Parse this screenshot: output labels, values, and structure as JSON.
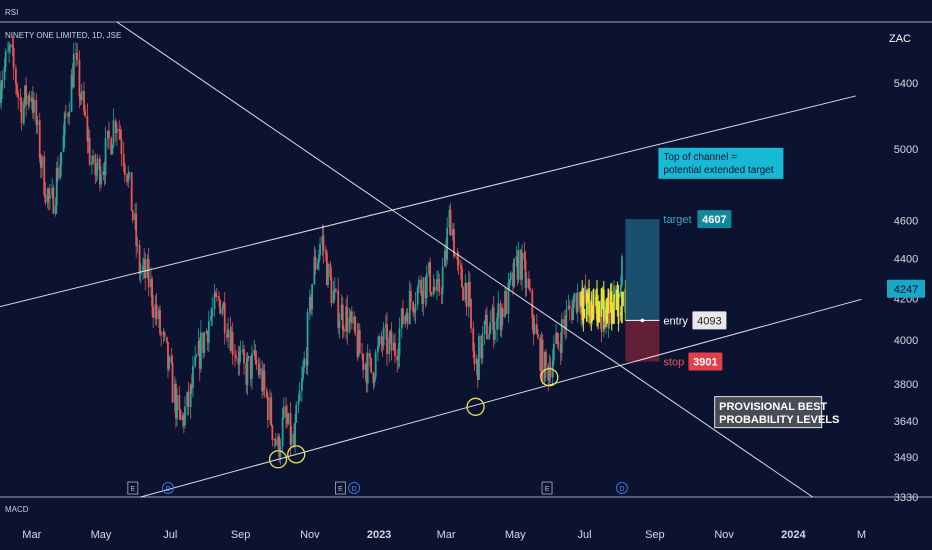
{
  "panes": {
    "top_label": "RSI",
    "bottom_label": "MACD"
  },
  "symbol": {
    "title": "NINETY ONE LIMITED, 1D, JSE",
    "currency": "ZAC"
  },
  "colors": {
    "bg": "#0c1331",
    "up": "#26a69a",
    "down": "#ef5350",
    "projection": "#e4e43a",
    "marker": "#e3e35a",
    "line": "#ffffff"
  },
  "chart_data": {
    "type": "candlestick",
    "y_scale": "log",
    "ylim": [
      3330,
      5800
    ],
    "y_ticks": [
      "5400",
      "5000",
      "4600",
      "4400",
      "4200",
      "4000",
      "3800",
      "3640",
      "3490",
      "3330"
    ],
    "x_ticks": [
      "Mar",
      "May",
      "Jul",
      "Sep",
      "Nov",
      "2023",
      "Mar",
      "May",
      "Jul",
      "Sep",
      "Nov",
      "2024",
      "M"
    ],
    "x_range": [
      "2022-02-01",
      "2024-03-20"
    ],
    "last_price": "4247",
    "price_path": [
      {
        "date": "2022-02-01",
        "price": 5400
      },
      {
        "date": "2022-02-10",
        "price": 5600
      },
      {
        "date": "2022-02-20",
        "price": 5250
      },
      {
        "date": "2022-03-01",
        "price": 5350
      },
      {
        "date": "2022-03-10",
        "price": 4900
      },
      {
        "date": "2022-03-18",
        "price": 4650
      },
      {
        "date": "2022-03-28",
        "price": 5000
      },
      {
        "date": "2022-04-08",
        "price": 5550
      },
      {
        "date": "2022-04-15",
        "price": 5250
      },
      {
        "date": "2022-04-25",
        "price": 4850
      },
      {
        "date": "2022-05-05",
        "price": 4950
      },
      {
        "date": "2022-05-15",
        "price": 5200
      },
      {
        "date": "2022-05-25",
        "price": 4850
      },
      {
        "date": "2022-06-04",
        "price": 4350
      },
      {
        "date": "2022-06-12",
        "price": 4300
      },
      {
        "date": "2022-06-22",
        "price": 4050
      },
      {
        "date": "2022-07-01",
        "price": 3850
      },
      {
        "date": "2022-07-10",
        "price": 3620
      },
      {
        "date": "2022-07-18",
        "price": 3720
      },
      {
        "date": "2022-07-25",
        "price": 3900
      },
      {
        "date": "2022-08-05",
        "price": 4100
      },
      {
        "date": "2022-08-15",
        "price": 4200
      },
      {
        "date": "2022-08-25",
        "price": 4000
      },
      {
        "date": "2022-09-05",
        "price": 3850
      },
      {
        "date": "2022-09-15",
        "price": 3900
      },
      {
        "date": "2022-09-26",
        "price": 3700
      },
      {
        "date": "2022-10-04",
        "price": 3520
      },
      {
        "date": "2022-10-10",
        "price": 3650
      },
      {
        "date": "2022-10-18",
        "price": 3530
      },
      {
        "date": "2022-10-28",
        "price": 3900
      },
      {
        "date": "2022-11-05",
        "price": 4350
      },
      {
        "date": "2022-11-12",
        "price": 4500
      },
      {
        "date": "2022-11-18",
        "price": 4300
      },
      {
        "date": "2022-11-25",
        "price": 4150
      },
      {
        "date": "2022-12-05",
        "price": 4100
      },
      {
        "date": "2022-12-15",
        "price": 3950
      },
      {
        "date": "2022-12-25",
        "price": 3850
      },
      {
        "date": "2023-01-05",
        "price": 4000
      },
      {
        "date": "2023-01-15",
        "price": 3950
      },
      {
        "date": "2023-01-25",
        "price": 4150
      },
      {
        "date": "2023-02-05",
        "price": 4250
      },
      {
        "date": "2023-02-15",
        "price": 4300
      },
      {
        "date": "2023-02-22",
        "price": 4200
      },
      {
        "date": "2023-03-01",
        "price": 4400
      },
      {
        "date": "2023-03-05",
        "price": 4650
      },
      {
        "date": "2023-03-12",
        "price": 4300
      },
      {
        "date": "2023-03-20",
        "price": 4250
      },
      {
        "date": "2023-03-27",
        "price": 3850
      },
      {
        "date": "2023-04-05",
        "price": 4050
      },
      {
        "date": "2023-04-15",
        "price": 4100
      },
      {
        "date": "2023-04-25",
        "price": 4200
      },
      {
        "date": "2023-05-05",
        "price": 4400
      },
      {
        "date": "2023-05-12",
        "price": 4250
      },
      {
        "date": "2023-05-20",
        "price": 4000
      },
      {
        "date": "2023-05-28",
        "price": 3850
      },
      {
        "date": "2023-06-05",
        "price": 3950
      },
      {
        "date": "2023-06-15",
        "price": 4100
      },
      {
        "date": "2023-06-25",
        "price": 4220
      },
      {
        "date": "2023-07-05",
        "price": 4170
      },
      {
        "date": "2023-07-15",
        "price": 4100
      },
      {
        "date": "2023-07-25",
        "price": 4150
      },
      {
        "date": "2023-08-01",
        "price": 4240
      },
      {
        "date": "2023-08-05",
        "price": 4350
      }
    ],
    "projection": {
      "start": "2023-06-28",
      "end": "2023-08-06",
      "low": 4080,
      "high": 4250
    }
  },
  "lines": {
    "channel_upper": [
      {
        "date": "2022-01-25",
        "price": 4150
      },
      {
        "date": "2024-02-25",
        "price": 5320
      }
    ],
    "channel_lower": [
      {
        "date": "2022-06-05",
        "price": 3330
      },
      {
        "date": "2024-03-01",
        "price": 4195
      }
    ],
    "descending": [
      {
        "date": "2022-05-15",
        "price": 5800
      },
      {
        "date": "2024-01-18",
        "price": 3330
      }
    ]
  },
  "circles": [
    {
      "date": "2022-10-04",
      "price": 3480
    },
    {
      "date": "2022-10-20",
      "price": 3500
    },
    {
      "date": "2023-03-27",
      "price": 3700
    },
    {
      "date": "2023-05-31",
      "price": 3830
    }
  ],
  "events": [
    {
      "date": "2022-05-29",
      "kind": "E"
    },
    {
      "date": "2022-06-29",
      "kind": "D"
    },
    {
      "date": "2022-11-28",
      "kind": "E"
    },
    {
      "date": "2022-12-10",
      "kind": "D"
    },
    {
      "date": "2023-05-29",
      "kind": "E"
    },
    {
      "date": "2023-08-03",
      "kind": "D"
    }
  ],
  "position": {
    "start": "2023-08-06",
    "end": "2023-09-05",
    "target_value": 4607,
    "entry_value": 4093,
    "stop_value": 3901,
    "target_label": "target",
    "target_price": "4607",
    "entry_label": "entry",
    "entry_price": "4093",
    "stop_label": "stop",
    "stop_price": "3901"
  },
  "annotations": {
    "channel_note_line1": "Top of channel =",
    "channel_note_line2": "potential extended target",
    "note_anchor": {
      "date": "2023-09-05",
      "price": 4920
    },
    "provisional_line1": "PROVISIONAL BEST",
    "provisional_line2": "PROBABILITY LEVELS",
    "provisional_anchor": {
      "date": "2023-10-25",
      "price": 3660
    }
  }
}
